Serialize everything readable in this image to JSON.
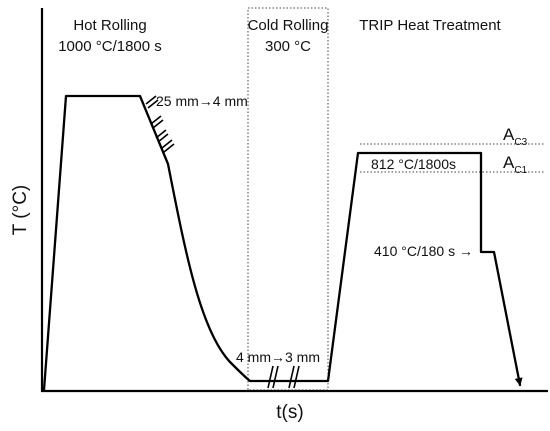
{
  "stages": {
    "hot_rolling": {
      "title": "Hot Rolling",
      "condition": "1000 °C/1800 s"
    },
    "cold_rolling": {
      "title": "Cold Rolling",
      "condition": "300 °C"
    },
    "trip": {
      "title": "TRIP Heat Treatment"
    }
  },
  "annotations": {
    "hot_reduction": "25 mm→4 mm",
    "cold_reduction": "4 mm→3 mm",
    "intercritical": "812 °C/1800s",
    "bainitic": "410 °C/180 s →"
  },
  "critical_temps": {
    "ac3": {
      "main": "A",
      "sub": "C3"
    },
    "ac1": {
      "main": "A",
      "sub": "C1"
    }
  },
  "axes": {
    "y_label": "T (°C)",
    "x_label": "t(s)"
  }
}
